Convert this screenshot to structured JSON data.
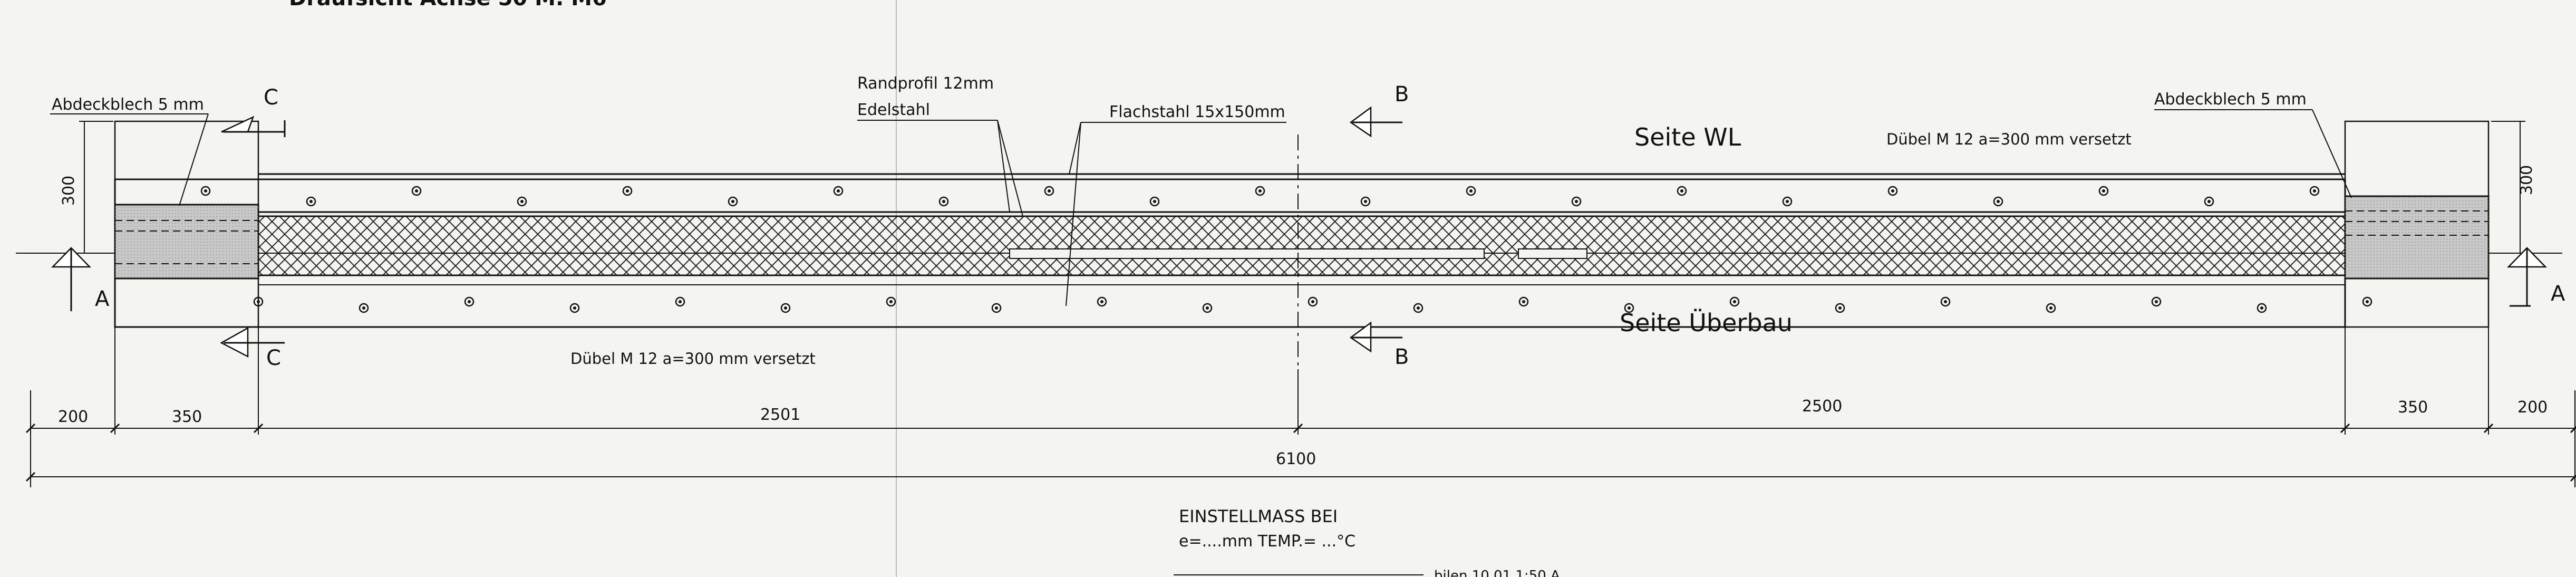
{
  "header": {
    "title_fragment": "Draufsicht Achse 50 M. M6"
  },
  "labels": {
    "abdeckblech_left": "Abdeckblech 5 mm",
    "abdeckblech_right": "Abdeckblech 5 mm",
    "randprofil_line1": "Randprofil 12mm",
    "randprofil_line2": "Edelstahl",
    "flachstahl": "Flachstahl 15x150mm",
    "seite_wl": "Seite WL",
    "seite_ueberbau": "Seite Überbau",
    "duebel_top": "Dübel M 12 a=300 mm versetzt",
    "duebel_bottom": "Dübel M 12 a=300 mm versetzt",
    "height_left": "300",
    "height_right": "300"
  },
  "sections": {
    "c": "C",
    "b": "B",
    "a": "A"
  },
  "dimensions": {
    "left_edge": "200",
    "left_cover": "350",
    "left_span": "2501",
    "right_span": "2500",
    "right_cover": "350",
    "right_edge": "200",
    "total": "6100"
  },
  "footer": {
    "einstellmass": "EINSTELLMASS BEI",
    "formula": "e=....mm  TEMP.= ...°C",
    "fragment": "bilen  10.01  1:50 A"
  },
  "colors": {
    "line": "#111111",
    "paper": "#f4f4f1",
    "plate_fill": "#c8c8c8",
    "hatch": "#222222"
  }
}
